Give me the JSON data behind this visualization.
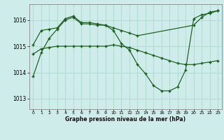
{
  "xlabel": "Graphe pression niveau de la mer (hPa)",
  "background_color": "#ceecea",
  "grid_color": "#aad4c8",
  "line_color": "#1a5c1a",
  "ylim": [
    1012.6,
    1016.6
  ],
  "yticks": [
    1013,
    1014,
    1015,
    1016
  ],
  "line1_x": [
    0,
    1,
    2,
    3,
    4,
    5,
    6,
    7,
    8,
    9,
    10,
    11,
    12,
    13,
    20,
    21,
    22,
    23
  ],
  "line1_y": [
    1015.05,
    1015.6,
    1015.65,
    1015.7,
    1016.05,
    1016.15,
    1015.9,
    1015.9,
    1015.85,
    1015.8,
    1015.7,
    1015.6,
    1015.5,
    1015.4,
    1015.8,
    1016.1,
    1016.3,
    1016.35
  ],
  "line2_x": [
    0,
    1,
    2,
    3,
    4,
    5,
    6,
    7,
    8,
    9,
    10,
    11,
    12,
    13,
    14,
    15,
    16,
    17,
    18,
    19,
    20,
    21,
    22,
    23
  ],
  "line2_y": [
    1014.7,
    1014.9,
    1014.95,
    1015.0,
    1015.0,
    1015.0,
    1015.0,
    1015.0,
    1015.0,
    1015.0,
    1015.05,
    1015.0,
    1014.95,
    1014.85,
    1014.75,
    1014.65,
    1014.55,
    1014.45,
    1014.35,
    1014.3,
    1014.3,
    1014.35,
    1014.4,
    1014.45
  ],
  "line3_x": [
    0,
    1,
    2,
    3,
    4,
    5,
    6,
    7,
    8,
    9,
    10,
    11,
    12,
    13,
    14,
    15,
    16,
    17,
    18,
    19,
    20,
    21,
    22,
    23
  ],
  "line3_y": [
    1013.85,
    1014.75,
    1015.3,
    1015.65,
    1016.0,
    1016.1,
    1015.85,
    1015.85,
    1015.8,
    1015.8,
    1015.6,
    1015.1,
    1014.85,
    1014.3,
    1013.95,
    1013.5,
    1013.3,
    1013.3,
    1013.45,
    1014.1,
    1016.05,
    1016.2,
    1016.25,
    1016.35
  ]
}
